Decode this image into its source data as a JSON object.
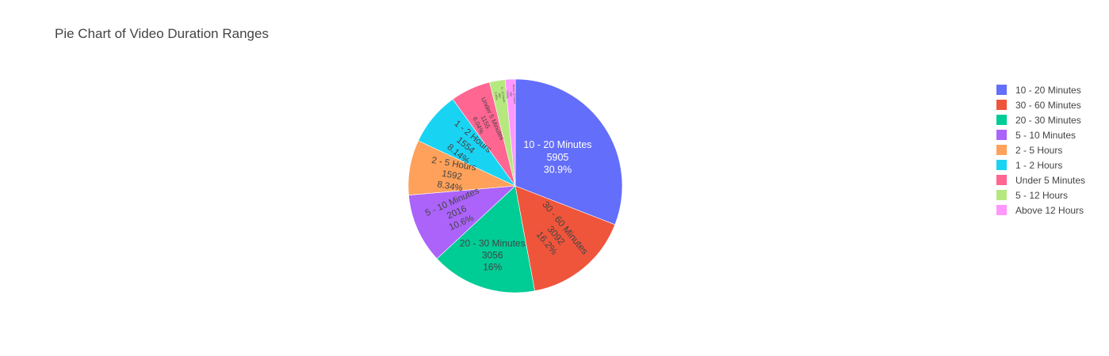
{
  "chart_data": {
    "type": "pie",
    "title": "Pie Chart of Video Duration Ranges",
    "slices": [
      {
        "label": "10 - 20 Minutes",
        "value": 5905,
        "percent_text": "30.9%",
        "color": "#636efa",
        "text_color": "#ffffff"
      },
      {
        "label": "30 - 60 Minutes",
        "value": 3092,
        "percent_text": "16.2%",
        "color": "#EF553B",
        "text_color": "#444444"
      },
      {
        "label": "20 - 30 Minutes",
        "value": 3056,
        "percent_text": "16%",
        "color": "#00cc96",
        "text_color": "#444444"
      },
      {
        "label": "5 - 10 Minutes",
        "value": 2016,
        "percent_text": "10.6%",
        "color": "#ab63fa",
        "text_color": "#444444"
      },
      {
        "label": "2 - 5 Hours",
        "value": 1592,
        "percent_text": "8.34%",
        "color": "#FFA15A",
        "text_color": "#444444"
      },
      {
        "label": "1 - 2 Hours",
        "value": 1554,
        "percent_text": "8.14%",
        "color": "#19d3f3",
        "text_color": "#444444"
      },
      {
        "label": "Under 5 Minutes",
        "value": 1155,
        "percent_text": "6.04%",
        "color": "#FF6692",
        "text_color": "#444444"
      },
      {
        "label": "5 - 12 Hours",
        "value": 450,
        "percent_text": "2.36%",
        "color": "#B6E880",
        "text_color": "#444444"
      },
      {
        "label": "Above 12 Hours",
        "value": 290,
        "percent_text": "1.52%",
        "color": "#FF97FF",
        "text_color": "#444444"
      }
    ],
    "legend": {
      "position": "top-right",
      "entries": [
        "10 - 20 Minutes",
        "30 - 60 Minutes",
        "20 - 30 Minutes",
        "5 - 10 Minutes",
        "2 - 5 Hours",
        "1 - 2 Hours",
        "Under 5 Minutes",
        "5 - 12 Hours",
        "Above 12 Hours"
      ]
    },
    "direction": "clockwise",
    "start": "top",
    "text_info": "label+value+percent"
  }
}
